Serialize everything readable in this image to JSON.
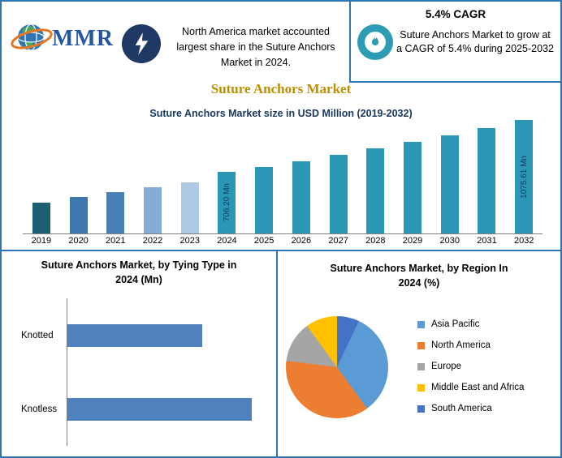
{
  "title": "Suture Anchors Market",
  "header": {
    "logo_text": "MMR",
    "na_note": "North America market accounted largest share in the Suture Anchors Market in 2024.",
    "cagr_title": "5.4% CAGR",
    "cagr_note": "Suture Anchors Market to grow at a CAGR of 5.4% during 2025-2032"
  },
  "colors": {
    "border_blue": "#2E75B6",
    "title_gold": "#BF8F00",
    "navy": "#1F3864",
    "badge_teal": "#2E9BB5",
    "axis_gray": "#7F7F7F"
  },
  "chart_data": [
    {
      "type": "bar",
      "title": "Suture Anchors Market size in USD Million (2019-2032)",
      "categories": [
        "2019",
        "2020",
        "2021",
        "2022",
        "2023",
        "2024",
        "2025",
        "2026",
        "2027",
        "2028",
        "2029",
        "2030",
        "2031",
        "2032"
      ],
      "values": [
        490,
        527,
        562,
        600,
        632,
        706.2,
        744.3,
        784.5,
        826.9,
        871.5,
        918.6,
        968.2,
        1020.5,
        1075.61
      ],
      "labeled_points": [
        {
          "category": "2024",
          "label": "706.20 Mn"
        },
        {
          "category": "2032",
          "label": "1075.61 Mn"
        }
      ],
      "bar_colors": [
        "#1F5F73",
        "#3F76AE",
        "#4A80B8",
        "#85ABD6",
        "#AEC9E5",
        "#2C96B5",
        "#2C96B5",
        "#2C96B5",
        "#2C96B5",
        "#2C96B5",
        "#2C96B5",
        "#2C96B5",
        "#2C96B5",
        "#2C96B5"
      ],
      "xlabel": "",
      "ylabel": "",
      "grid": false
    },
    {
      "type": "bar",
      "orientation": "horizontal",
      "title": "Suture Anchors Market, by Tying Type in 2024 (Mn)",
      "categories": [
        "Knotted",
        "Knotless"
      ],
      "values": [
        73,
        100
      ],
      "bar_color": "#4E81BD",
      "axis_labels_visible": false
    },
    {
      "type": "pie",
      "title": "Suture Anchors Market, by Region In 2024 (%)",
      "slices": [
        {
          "label": "Asia Pacific",
          "value": 33,
          "color": "#5B9BD5"
        },
        {
          "label": "North America",
          "value": 37,
          "color": "#ED7D31"
        },
        {
          "label": "Europe",
          "value": 13,
          "color": "#A5A5A5"
        },
        {
          "label": "Middle East and Africa",
          "value": 10,
          "color": "#FFC000"
        },
        {
          "label": "South America",
          "value": 7,
          "color": "#4472C4"
        }
      ],
      "draw_order": [
        4,
        0,
        1,
        2,
        3
      ],
      "legend_position": "right"
    }
  ]
}
